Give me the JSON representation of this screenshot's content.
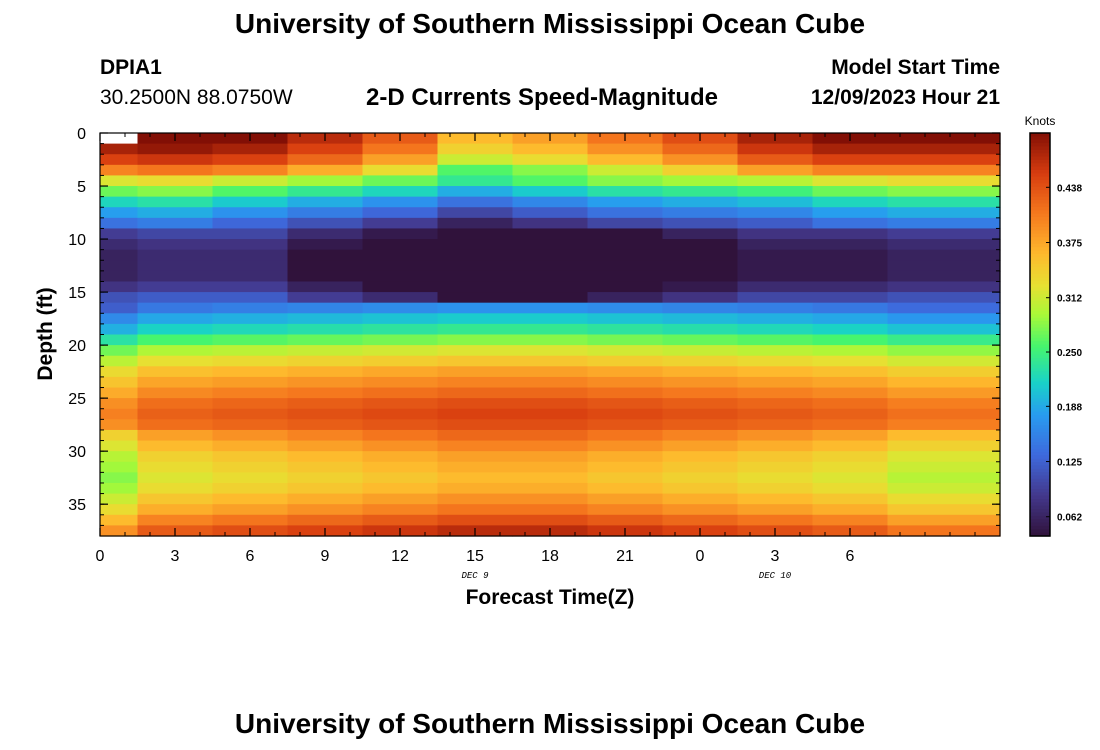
{
  "page": {
    "title": "University of Southern Mississippi Ocean Cube",
    "bottom_title": "University of Southern Mississippi Ocean Cube"
  },
  "station": {
    "name": "DPIA1",
    "coords": "30.2500N  88.0750W"
  },
  "model": {
    "label": "Model Start Time",
    "start": "12/09/2023 Hour 21"
  },
  "chart_data": {
    "type": "heatmap",
    "title": "2-D Currents Speed-Magnitude",
    "xlabel": "Forecast Time(Z)",
    "ylabel": "Depth (ft)",
    "x_tick_labels": [
      "0",
      "3",
      "6",
      "9",
      "12",
      "15",
      "18",
      "21",
      "0",
      "3",
      "6"
    ],
    "y_tick_labels": [
      "0",
      "5",
      "10",
      "15",
      "20",
      "25",
      "30",
      "35"
    ],
    "y_ticks": [
      0,
      5,
      10,
      15,
      20,
      25,
      30,
      35
    ],
    "ylim": [
      0,
      38
    ],
    "x_hours": [
      0,
      3,
      6,
      9,
      12,
      15,
      18,
      21,
      24,
      27,
      30,
      33
    ],
    "date_labels": [
      {
        "hour": 15,
        "text": "DEC 9"
      },
      {
        "hour": 27,
        "text": "DEC 10"
      }
    ],
    "colorbar": {
      "unit": "Knots",
      "min": 0.04,
      "max": 0.5,
      "tick_values": [
        0.062,
        0.125,
        0.188,
        0.25,
        0.312,
        0.375,
        0.438
      ],
      "tick_labels": [
        "0.062",
        "0.125",
        "0.188",
        "0.250",
        "0.312",
        "0.375",
        "0.438"
      ]
    },
    "depth_ft": [
      0.5,
      1.5,
      2.5,
      3.5,
      4.5,
      5.5,
      6.5,
      7.5,
      8.5,
      9.5,
      10.5,
      11.5,
      12.5,
      13.5,
      14.5,
      15.5,
      16.5,
      17.5,
      18.5,
      19.5,
      20.5,
      21.5,
      22.5,
      23.5,
      24.5,
      25.5,
      26.5,
      27.5,
      28.5,
      29.5,
      30.5,
      31.5,
      32.5,
      33.5,
      34.5,
      35.5,
      36.5,
      37.5
    ],
    "profile_knots": [
      0.48,
      0.46,
      0.43,
      0.38,
      0.31,
      0.26,
      0.21,
      0.17,
      0.13,
      0.11,
      0.09,
      0.08,
      0.08,
      0.08,
      0.1,
      0.13,
      0.17,
      0.21,
      0.24,
      0.28,
      0.32,
      0.35,
      0.38,
      0.4,
      0.42,
      0.44,
      0.45,
      0.44,
      0.42,
      0.4,
      0.38,
      0.37,
      0.36,
      0.37,
      0.39,
      0.41,
      0.44,
      0.47
    ],
    "column_shift": [
      [
        0,
        0.02,
        0.01,
        -0.02,
        -0.08
      ],
      [
        3,
        0.03,
        0.02,
        -0.01,
        -0.04
      ],
      [
        6,
        0.02,
        0.0,
        -0.01,
        -0.03
      ],
      [
        9,
        -0.01,
        -0.02,
        -0.04,
        -0.02
      ],
      [
        12,
        -0.05,
        -0.04,
        -0.06,
        -0.01
      ],
      [
        15,
        -0.12,
        -0.07,
        -0.11,
        0.0
      ],
      [
        18,
        -0.1,
        -0.05,
        -0.09,
        0.0
      ],
      [
        21,
        -0.07,
        -0.03,
        -0.07,
        -0.01
      ],
      [
        24,
        -0.04,
        -0.02,
        -0.05,
        -0.02
      ],
      [
        27,
        0.0,
        -0.01,
        -0.03,
        -0.03
      ],
      [
        30,
        0.02,
        0.01,
        -0.03,
        -0.04
      ],
      [
        33,
        0.02,
        0.02,
        -0.02,
        -0.06
      ]
    ]
  }
}
